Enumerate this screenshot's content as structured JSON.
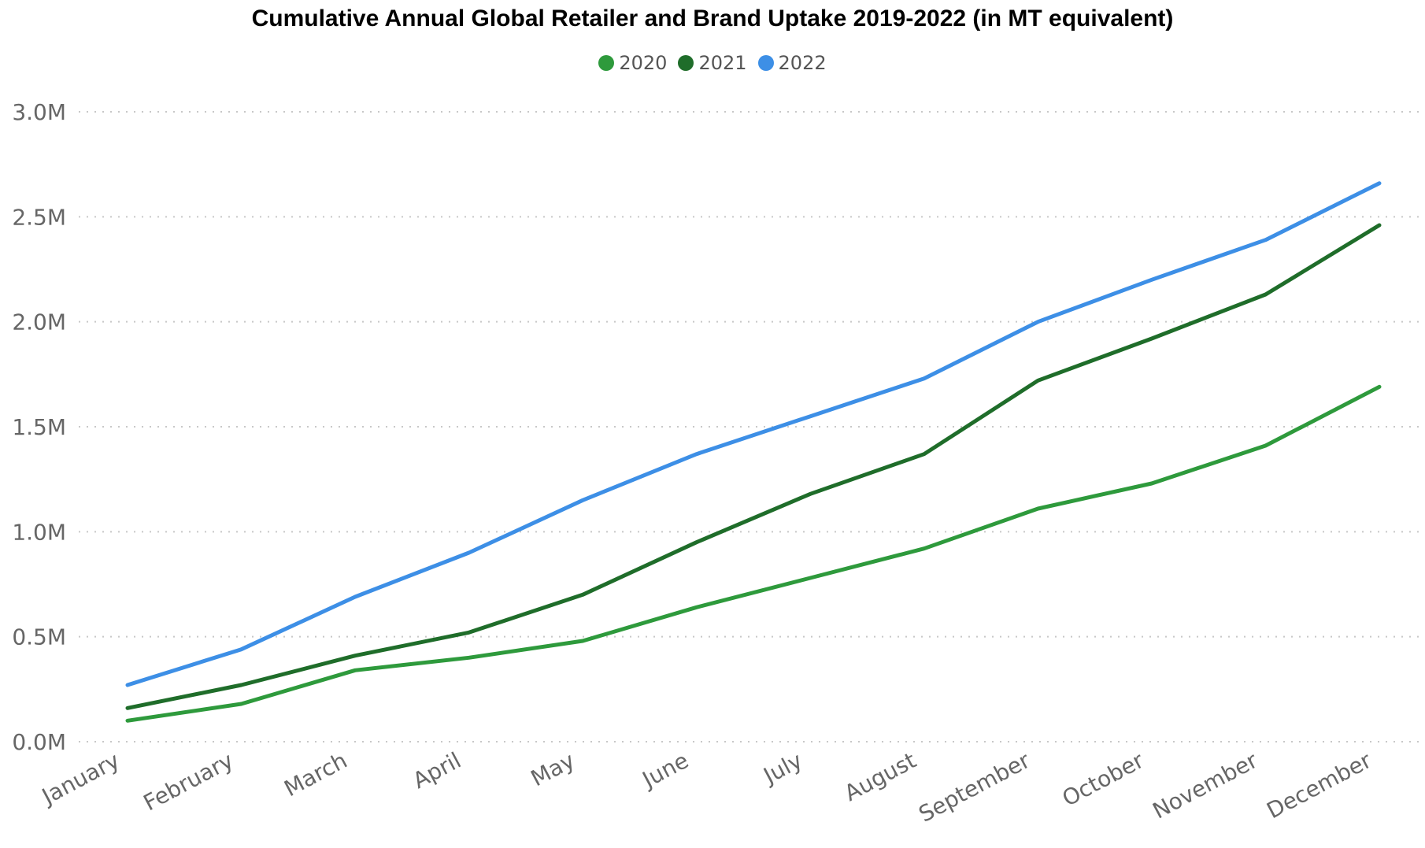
{
  "chart_data": {
    "type": "line",
    "title": "Cumulative Annual Global Retailer and Brand Uptake 2019-2022 (in MT equivalent)",
    "xlabel": "",
    "ylabel": "",
    "categories": [
      "January",
      "February",
      "March",
      "April",
      "May",
      "June",
      "July",
      "August",
      "September",
      "October",
      "November",
      "December"
    ],
    "ylim": [
      0,
      3000000
    ],
    "yticks": [
      0,
      500000,
      1000000,
      1500000,
      2000000,
      2500000,
      3000000
    ],
    "ytick_labels": [
      "0.0M",
      "0.5M",
      "1.0M",
      "1.5M",
      "2.0M",
      "2.5M",
      "3.0M"
    ],
    "grid": "horizontal dotted",
    "legend_position": "top-center",
    "series": [
      {
        "name": "2020",
        "color": "#2e9a3c",
        "values": [
          100000,
          180000,
          340000,
          400000,
          480000,
          640000,
          780000,
          920000,
          1110000,
          1230000,
          1410000,
          1690000
        ]
      },
      {
        "name": "2021",
        "color": "#1f6d2a",
        "values": [
          160000,
          270000,
          410000,
          520000,
          700000,
          950000,
          1180000,
          1370000,
          1720000,
          1920000,
          2130000,
          2460000
        ]
      },
      {
        "name": "2022",
        "color": "#3d8fe6",
        "values": [
          270000,
          440000,
          690000,
          900000,
          1150000,
          1370000,
          1550000,
          1730000,
          2000000,
          2200000,
          2390000,
          2660000
        ]
      }
    ]
  }
}
